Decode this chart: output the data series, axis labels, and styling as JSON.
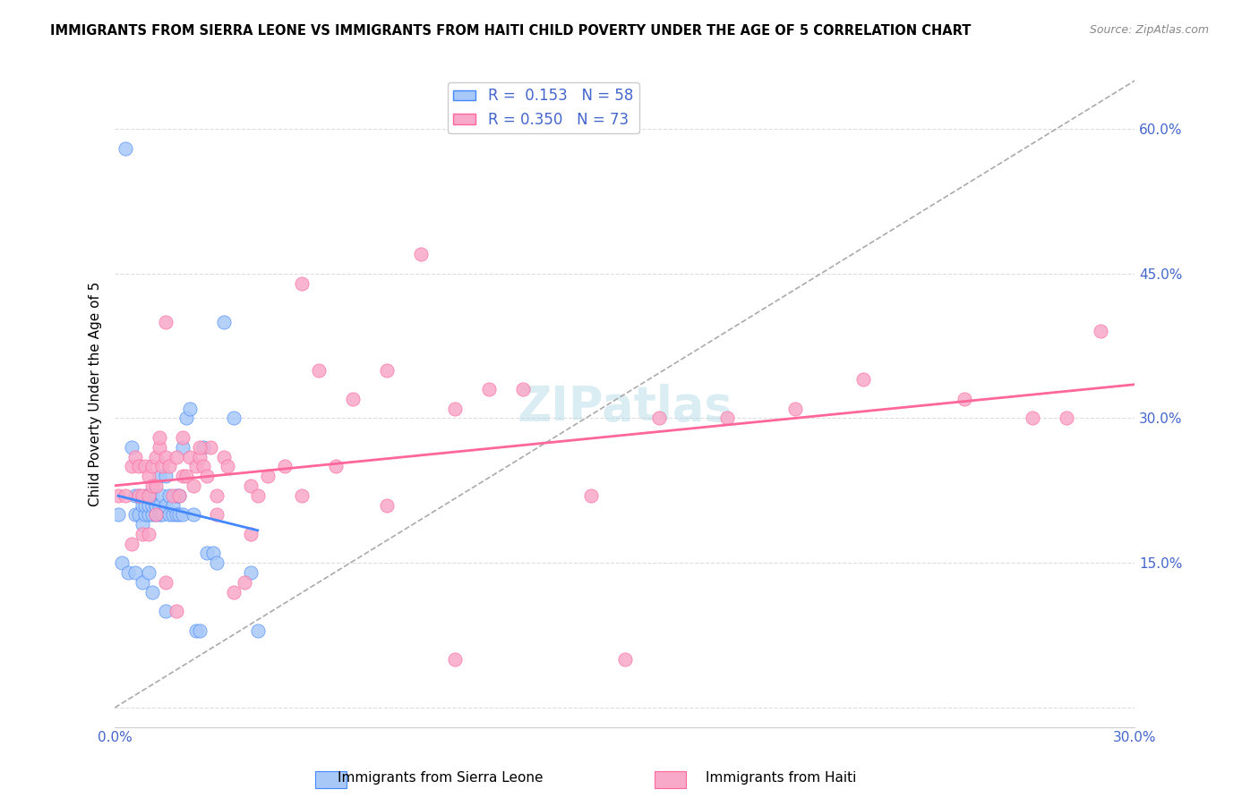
{
  "title": "IMMIGRANTS FROM SIERRA LEONE VS IMMIGRANTS FROM HAITI CHILD POVERTY UNDER THE AGE OF 5 CORRELATION CHART",
  "source": "Source: ZipAtlas.com",
  "xlabel_bottom": "",
  "ylabel": "Child Poverty Under the Age of 5",
  "xlim": [
    0.0,
    0.3
  ],
  "ylim": [
    -0.02,
    0.67
  ],
  "yticks": [
    0.0,
    0.15,
    0.3,
    0.45,
    0.6
  ],
  "ytick_labels": [
    "",
    "15.0%",
    "30.0%",
    "45.0%",
    "60.0%"
  ],
  "xticks": [
    0.0,
    0.05,
    0.1,
    0.15,
    0.2,
    0.25,
    0.3
  ],
  "xtick_labels": [
    "0.0%",
    "",
    "",
    "",
    "",
    "",
    "30.0%"
  ],
  "legend_r1": "R =  0.153   N = 58",
  "legend_r2": "R = 0.350   N = 73",
  "sierra_leone_color": "#a8c8f8",
  "haiti_color": "#f8a8c8",
  "trend_sl_color": "#4488ff",
  "trend_haiti_color": "#ff6699",
  "dashed_line_color": "#aaaaaa",
  "background_color": "#ffffff",
  "grid_color": "#dddddd",
  "watermark": "ZIPatlas",
  "legend_bottom_labels": [
    "Immigrants from Sierra Leone",
    "Immigrants from Haiti"
  ],
  "sl_scatter_x": [
    0.001,
    0.003,
    0.005,
    0.006,
    0.006,
    0.007,
    0.007,
    0.008,
    0.008,
    0.009,
    0.009,
    0.009,
    0.01,
    0.01,
    0.01,
    0.011,
    0.011,
    0.011,
    0.012,
    0.012,
    0.012,
    0.013,
    0.013,
    0.013,
    0.014,
    0.014,
    0.015,
    0.015,
    0.016,
    0.016,
    0.017,
    0.017,
    0.018,
    0.018,
    0.019,
    0.019,
    0.02,
    0.021,
    0.022,
    0.023,
    0.024,
    0.025,
    0.026,
    0.027,
    0.029,
    0.03,
    0.032,
    0.035,
    0.04,
    0.042,
    0.002,
    0.004,
    0.006,
    0.008,
    0.01,
    0.011,
    0.015,
    0.02
  ],
  "sl_scatter_y": [
    0.2,
    0.58,
    0.27,
    0.2,
    0.22,
    0.2,
    0.22,
    0.19,
    0.21,
    0.2,
    0.21,
    0.22,
    0.2,
    0.21,
    0.22,
    0.2,
    0.21,
    0.22,
    0.2,
    0.21,
    0.21,
    0.2,
    0.21,
    0.24,
    0.2,
    0.22,
    0.21,
    0.24,
    0.2,
    0.22,
    0.2,
    0.21,
    0.2,
    0.22,
    0.2,
    0.22,
    0.2,
    0.3,
    0.31,
    0.2,
    0.08,
    0.08,
    0.27,
    0.16,
    0.16,
    0.15,
    0.4,
    0.3,
    0.14,
    0.08,
    0.15,
    0.14,
    0.14,
    0.13,
    0.14,
    0.12,
    0.1,
    0.27
  ],
  "haiti_scatter_x": [
    0.001,
    0.003,
    0.005,
    0.006,
    0.007,
    0.007,
    0.008,
    0.009,
    0.01,
    0.01,
    0.011,
    0.011,
    0.012,
    0.012,
    0.013,
    0.013,
    0.014,
    0.015,
    0.015,
    0.016,
    0.017,
    0.018,
    0.019,
    0.02,
    0.02,
    0.021,
    0.022,
    0.023,
    0.024,
    0.025,
    0.026,
    0.027,
    0.028,
    0.03,
    0.032,
    0.033,
    0.035,
    0.038,
    0.04,
    0.042,
    0.045,
    0.05,
    0.055,
    0.06,
    0.065,
    0.07,
    0.08,
    0.09,
    0.1,
    0.11,
    0.12,
    0.14,
    0.16,
    0.18,
    0.2,
    0.22,
    0.25,
    0.27,
    0.29,
    0.005,
    0.008,
    0.01,
    0.012,
    0.015,
    0.018,
    0.025,
    0.03,
    0.04,
    0.055,
    0.08,
    0.1,
    0.15,
    0.28
  ],
  "haiti_scatter_y": [
    0.22,
    0.22,
    0.25,
    0.26,
    0.22,
    0.25,
    0.22,
    0.25,
    0.22,
    0.24,
    0.23,
    0.25,
    0.23,
    0.26,
    0.27,
    0.28,
    0.25,
    0.4,
    0.26,
    0.25,
    0.22,
    0.26,
    0.22,
    0.24,
    0.28,
    0.24,
    0.26,
    0.23,
    0.25,
    0.26,
    0.25,
    0.24,
    0.27,
    0.2,
    0.26,
    0.25,
    0.12,
    0.13,
    0.23,
    0.22,
    0.24,
    0.25,
    0.44,
    0.35,
    0.25,
    0.32,
    0.35,
    0.47,
    0.31,
    0.33,
    0.33,
    0.22,
    0.3,
    0.3,
    0.31,
    0.34,
    0.32,
    0.3,
    0.39,
    0.17,
    0.18,
    0.18,
    0.2,
    0.13,
    0.1,
    0.27,
    0.22,
    0.18,
    0.22,
    0.21,
    0.05,
    0.05,
    0.3
  ]
}
